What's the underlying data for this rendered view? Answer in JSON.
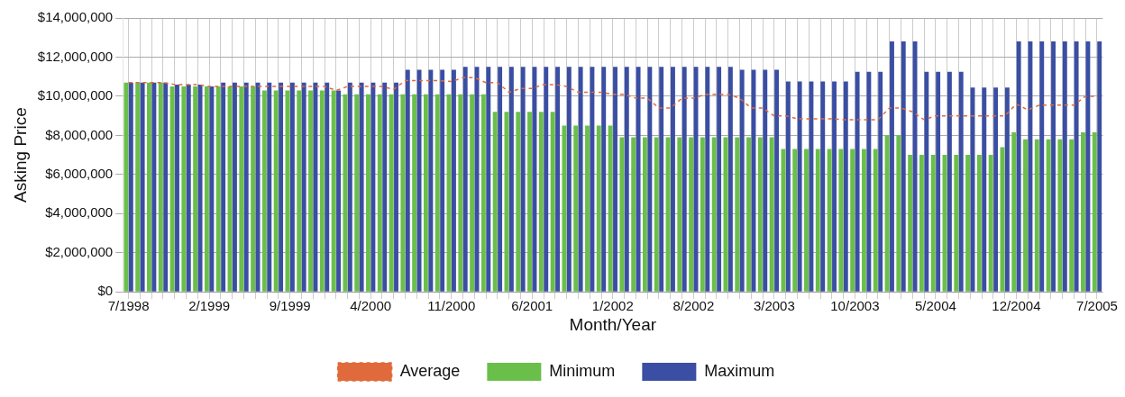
{
  "chart_data": {
    "type": "bar",
    "xlabel": "Month/Year",
    "ylabel": "Asking Price",
    "categories": [
      "7/1998",
      null,
      null,
      null,
      null,
      null,
      null,
      "2/1999",
      null,
      null,
      null,
      null,
      null,
      null,
      "9/1999",
      null,
      null,
      null,
      null,
      null,
      null,
      "4/2000",
      null,
      null,
      null,
      null,
      null,
      null,
      "11/2000",
      null,
      null,
      null,
      null,
      null,
      null,
      "6/2001",
      null,
      null,
      null,
      null,
      null,
      null,
      "1/2002",
      null,
      null,
      null,
      null,
      null,
      null,
      "8/2002",
      null,
      null,
      null,
      null,
      null,
      null,
      "3/2003",
      null,
      null,
      null,
      null,
      null,
      null,
      "10/2003",
      null,
      null,
      null,
      null,
      null,
      null,
      "5/2004",
      null,
      null,
      null,
      null,
      null,
      null,
      "12/2004",
      null,
      null,
      null,
      null,
      null,
      null,
      "7/2005"
    ],
    "series": [
      {
        "name": "Average",
        "type": "line",
        "line_style": "dashed",
        "color": "#e06a3c",
        "values": [
          10700000,
          10700000,
          10700000,
          10700000,
          10600000,
          10600000,
          10600000,
          10500000,
          10500000,
          10500000,
          10500000,
          10500000,
          10500000,
          10500000,
          10500000,
          10500000,
          10500000,
          10500000,
          10300000,
          10500000,
          10500000,
          10500000,
          10500000,
          10350000,
          10800000,
          10800000,
          10800000,
          10800000,
          10750000,
          10950000,
          10950000,
          10700000,
          10700000,
          10200000,
          10400000,
          10400000,
          10600000,
          10600000,
          10500000,
          10200000,
          10200000,
          10200000,
          10100000,
          10100000,
          9900000,
          9900000,
          9400000,
          9400000,
          9900000,
          9900000,
          10100000,
          10100000,
          10100000,
          9900000,
          9400000,
          9400000,
          9000000,
          9000000,
          8850000,
          8850000,
          8850000,
          8850000,
          8800000,
          8800000,
          8800000,
          8800000,
          9400000,
          9400000,
          9200000,
          8800000,
          9000000,
          9000000,
          9000000,
          9000000,
          9000000,
          9000000,
          9000000,
          9600000,
          9300000,
          9550000,
          9550000,
          9550000,
          9550000,
          10000000,
          10000000
        ]
      },
      {
        "name": "Minimum",
        "color": "#6abf4b",
        "values": [
          10700000,
          10700000,
          10700000,
          10700000,
          10500000,
          10500000,
          10500000,
          10500000,
          10500000,
          10500000,
          10500000,
          10500000,
          10300000,
          10300000,
          10300000,
          10300000,
          10300000,
          10300000,
          10300000,
          10100000,
          10100000,
          10100000,
          10100000,
          10100000,
          10100000,
          10100000,
          10100000,
          10100000,
          10100000,
          10100000,
          10100000,
          10100000,
          9200000,
          9200000,
          9200000,
          9200000,
          9200000,
          9200000,
          8500000,
          8500000,
          8500000,
          8500000,
          8500000,
          7900000,
          7900000,
          7900000,
          7900000,
          7900000,
          7900000,
          7900000,
          7900000,
          7900000,
          7900000,
          7900000,
          7900000,
          7900000,
          7900000,
          7300000,
          7300000,
          7300000,
          7300000,
          7300000,
          7300000,
          7300000,
          7300000,
          7300000,
          8000000,
          8000000,
          7000000,
          7000000,
          7000000,
          7000000,
          7000000,
          7000000,
          7000000,
          7000000,
          7400000,
          8150000,
          7800000,
          7800000,
          7800000,
          7800000,
          7800000,
          8150000,
          8150000
        ]
      },
      {
        "name": "Maximum",
        "color": "#3a4ea3",
        "values": [
          10700000,
          10700000,
          10700000,
          10700000,
          10600000,
          10600000,
          10600000,
          10500000,
          10700000,
          10700000,
          10700000,
          10700000,
          10700000,
          10700000,
          10700000,
          10700000,
          10700000,
          10700000,
          10300000,
          10700000,
          10700000,
          10700000,
          10700000,
          10700000,
          11350000,
          11350000,
          11350000,
          11350000,
          11350000,
          11500000,
          11500000,
          11500000,
          11500000,
          11500000,
          11500000,
          11500000,
          11500000,
          11500000,
          11500000,
          11500000,
          11500000,
          11500000,
          11500000,
          11500000,
          11500000,
          11500000,
          11500000,
          11500000,
          11500000,
          11500000,
          11500000,
          11500000,
          11500000,
          11350000,
          11350000,
          11350000,
          11350000,
          10750000,
          10750000,
          10750000,
          10750000,
          10750000,
          10750000,
          11250000,
          11250000,
          11250000,
          12800000,
          12800000,
          12800000,
          11250000,
          11250000,
          11250000,
          11250000,
          10450000,
          10450000,
          10450000,
          10450000,
          12800000,
          12800000,
          12800000,
          12800000,
          12800000,
          12800000,
          12800000,
          12800000
        ]
      }
    ],
    "ylim": [
      0,
      14000000
    ],
    "yticks": [
      {
        "value": 0,
        "label": "$0"
      },
      {
        "value": 2000000,
        "label": "$2,000,000"
      },
      {
        "value": 4000000,
        "label": "$4,000,000"
      },
      {
        "value": 6000000,
        "label": "$6,000,000"
      },
      {
        "value": 8000000,
        "label": "$8,000,000"
      },
      {
        "value": 10000000,
        "label": "$10,000,000"
      },
      {
        "value": 12000000,
        "label": "$12,000,000"
      },
      {
        "value": 14000000,
        "label": "$14,000,000"
      }
    ],
    "grid": true,
    "legend": "bottom"
  }
}
